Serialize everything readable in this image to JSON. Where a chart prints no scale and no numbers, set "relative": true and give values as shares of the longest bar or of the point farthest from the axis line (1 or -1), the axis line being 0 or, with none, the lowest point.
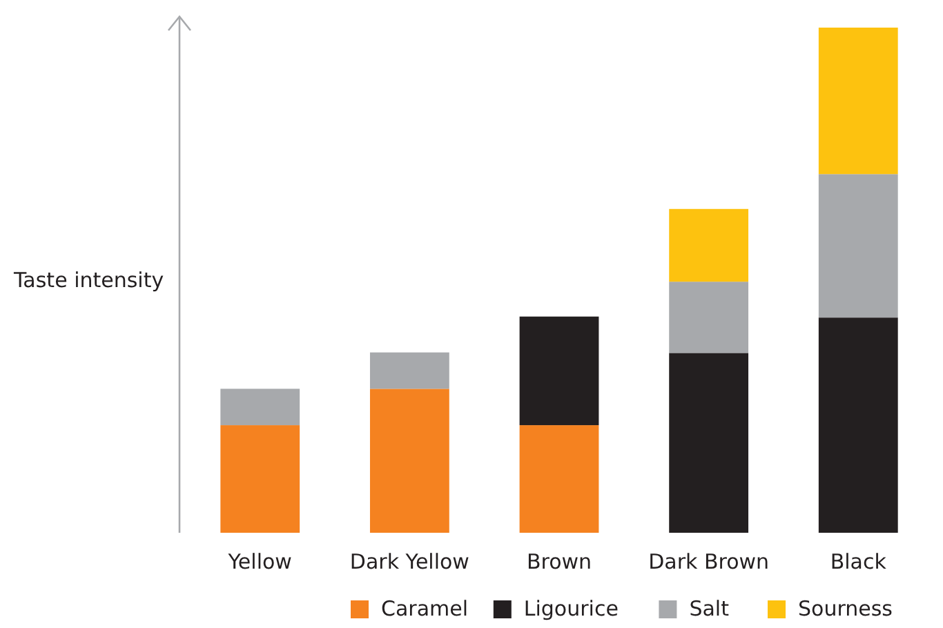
{
  "chart_data": {
    "type": "bar",
    "stacked": true,
    "relative": true,
    "ylabel": "Taste intensity",
    "legend": "bottom",
    "categories": [
      "Yellow",
      "Dark Yellow",
      "Brown",
      "Dark Brown",
      "Black"
    ],
    "series": [
      {
        "name": "Caramel",
        "color": "#f58220",
        "values": [
          0.213,
          0.285,
          0.213,
          null,
          null
        ]
      },
      {
        "name": "Ligourice",
        "color": "#231f20",
        "values": [
          null,
          null,
          0.215,
          0.356,
          0.426
        ]
      },
      {
        "name": "Salt",
        "color": "#a7a9ac",
        "values": [
          0.072,
          0.072,
          null,
          0.141,
          0.284
        ]
      },
      {
        "name": "Sourness",
        "color": "#fdc20f",
        "values": [
          null,
          null,
          null,
          0.144,
          0.29
        ]
      }
    ]
  }
}
